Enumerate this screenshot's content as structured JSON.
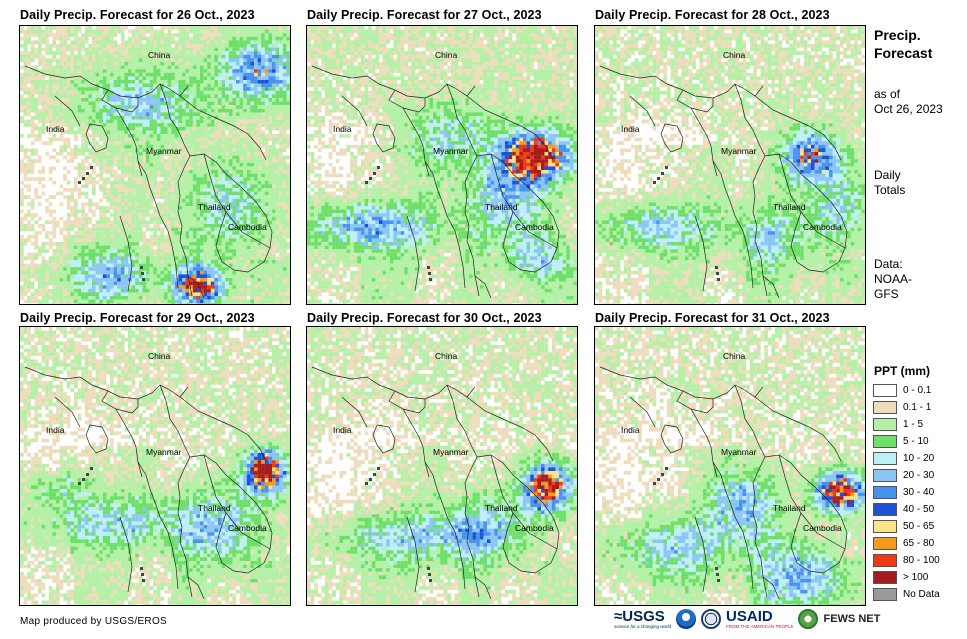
{
  "panels": [
    {
      "title": "Daily Precip. Forecast for 26 Oct., 2023",
      "date": "26 Oct., 2023"
    },
    {
      "title": "Daily Precip. Forecast for 27 Oct., 2023",
      "date": "27 Oct., 2023"
    },
    {
      "title": "Daily Precip. Forecast for 28 Oct., 2023",
      "date": "28 Oct., 2023"
    },
    {
      "title": "Daily Precip. Forecast for 29 Oct., 2023",
      "date": "29 Oct., 2023"
    },
    {
      "title": "Daily Precip. Forecast for 30 Oct., 2023",
      "date": "30 Oct., 2023"
    },
    {
      "title": "Daily Precip. Forecast for 31 Oct., 2023",
      "date": "31 Oct., 2023"
    }
  ],
  "map_labels": {
    "china": "China",
    "india": "India",
    "myanmar": "Myanmar",
    "thailand": "Thailand",
    "cambodia": "Cambodia"
  },
  "sidebar": {
    "heading_line1": "Precip.",
    "heading_line2": "Forecast",
    "asof_line1": "as of",
    "asof_line2": "Oct 26, 2023",
    "totals_line1": "Daily",
    "totals_line2": "Totals",
    "data_line1": "Data:",
    "data_line2": "NOAA-",
    "data_line3": "GFS"
  },
  "legend": {
    "title": "PPT (mm)",
    "items": [
      {
        "label": "0 - 0.1",
        "color": "#ffffff"
      },
      {
        "label": "0.1 - 1",
        "color": "#efdcbc"
      },
      {
        "label": "1 - 5",
        "color": "#b4f0a6"
      },
      {
        "label": "5 - 10",
        "color": "#6ee06a"
      },
      {
        "label": "10 - 20",
        "color": "#bfeff6"
      },
      {
        "label": "20 - 30",
        "color": "#8cc6f5"
      },
      {
        "label": "30 - 40",
        "color": "#4a93ec"
      },
      {
        "label": "40 - 50",
        "color": "#1c52d8"
      },
      {
        "label": "50 - 65",
        "color": "#fbe38c"
      },
      {
        "label": "65 - 80",
        "color": "#f59a1a"
      },
      {
        "label": "80 - 100",
        "color": "#ee3a17"
      },
      {
        "label": "> 100",
        "color": "#a71d1d"
      },
      {
        "label": "No Data",
        "color": "#9a9a9a"
      }
    ]
  },
  "footer": {
    "credit": "Map produced by USGS/EROS",
    "usgs": "≈USGS",
    "usgs_tagline": "science for a changing world",
    "usaid": "USAID",
    "usaid_tagline": "FROM THE AMERICAN PEOPLE",
    "fews": "FEWS NET"
  }
}
